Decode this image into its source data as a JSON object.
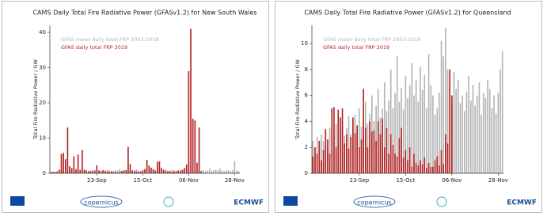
{
  "chart_data": [
    {
      "type": "bar",
      "title": "CAMS Daily Total Fire Radiative Power (GFASv1.2) for New South Wales",
      "y_label": "Total Fire Radiative Power / GW",
      "categories": [
        null,
        null,
        null,
        null,
        null,
        null,
        null,
        null,
        null,
        null,
        null,
        null,
        null,
        null,
        null,
        null,
        null,
        null,
        null,
        null,
        null,
        null,
        "23-Sep",
        null,
        null,
        null,
        null,
        null,
        null,
        null,
        null,
        null,
        null,
        null,
        null,
        null,
        null,
        null,
        null,
        null,
        null,
        null,
        null,
        null,
        "15-Oct",
        null,
        null,
        null,
        null,
        null,
        null,
        null,
        null,
        null,
        null,
        null,
        null,
        null,
        null,
        null,
        null,
        null,
        null,
        null,
        null,
        null,
        "06-Nov",
        null,
        null,
        null,
        null,
        null,
        null,
        null,
        null,
        null,
        null,
        null,
        null,
        null,
        null,
        null,
        null,
        null,
        null,
        null,
        null,
        null,
        "28-Nov",
        null,
        null
      ],
      "series": [
        {
          "name": "GFAS mean daily total FRP 2003-2018",
          "color": "#b4b4b4",
          "values": [
            0.5,
            0.6,
            0.4,
            0.7,
            0.5,
            0.8,
            0.6,
            0.9,
            0.5,
            0.7,
            0.6,
            0.8,
            0.5,
            0.9,
            0.7,
            0.6,
            1.0,
            0.8,
            0.6,
            0.7,
            0.9,
            0.7,
            1.1,
            0.8,
            0.6,
            0.9,
            0.7,
            1.0,
            0.8,
            0.6,
            0.7,
            0.9,
            0.8,
            1.2,
            0.7,
            0.9,
            0.6,
            1.0,
            0.8,
            0.7,
            0.9,
            1.1,
            0.8,
            0.6,
            1.0,
            0.9,
            0.7,
            1.2,
            0.8,
            0.9,
            0.7,
            1.0,
            0.8,
            0.6,
            0.9,
            1.1,
            0.8,
            0.7,
            1.0,
            0.9,
            0.6,
            0.8,
            1.0,
            0.7,
            0.9,
            0.8,
            1.1,
            0.7,
            0.9,
            0.6,
            0.8,
            1.0,
            0.7,
            0.9,
            0.6,
            0.8,
            1.3,
            0.7,
            0.9,
            1.0,
            0.8,
            1.4,
            0.7,
            0.6,
            0.9,
            0.8,
            0.7,
            0.9,
            3.5,
            0.8,
            0.6
          ]
        },
        {
          "name": "GFAS daily total FRP 2019",
          "color": "#b22222",
          "values": [
            0.2,
            0.3,
            0.3,
            0.4,
            1.0,
            5.5,
            5.8,
            4.0,
            13,
            2.0,
            1.5,
            4.8,
            1.2,
            5.3,
            1.0,
            6.6,
            1.0,
            0.8,
            0.6,
            0.7,
            0.5,
            0.8,
            2.3,
            0.8,
            0.6,
            0.9,
            0.7,
            0.5,
            0.4,
            0.6,
            0.3,
            0.4,
            0.2,
            0.5,
            0.6,
            0.8,
            0.9,
            7.5,
            2.6,
            0.8,
            0.6,
            0.5,
            0.4,
            0.5,
            0.8,
            1.2,
            3.8,
            2.2,
            1.6,
            1.2,
            0.8,
            3.3,
            3.4,
            1.5,
            1.0,
            0.6,
            0.5,
            0.6,
            0.4,
            0.5,
            0.6,
            0.8,
            0.7,
            1.0,
            1.5,
            2.5,
            29,
            41,
            15.5,
            15,
            3,
            13,
            0.6,
            null,
            null,
            null,
            null,
            null,
            null,
            null,
            null,
            null,
            null,
            null,
            null,
            null,
            null,
            null,
            null,
            null,
            null
          ]
        }
      ],
      "ylim": [
        0,
        42
      ],
      "yticks": [
        0,
        10,
        20,
        30,
        40
      ],
      "legend": "upper left"
    },
    {
      "type": "bar",
      "title": "CAMS Daily Total Fire Radiative Power (GFASv1.2) for Queensland",
      "y_label": "Total Fire Radiative Power / GW",
      "categories": [
        null,
        null,
        null,
        null,
        null,
        null,
        null,
        null,
        null,
        null,
        null,
        null,
        null,
        null,
        null,
        null,
        null,
        null,
        null,
        null,
        null,
        null,
        "23-Sep",
        null,
        null,
        null,
        null,
        null,
        null,
        null,
        null,
        null,
        null,
        null,
        null,
        null,
        null,
        null,
        null,
        null,
        null,
        null,
        null,
        null,
        "15-Oct",
        null,
        null,
        null,
        null,
        null,
        null,
        null,
        null,
        null,
        null,
        null,
        null,
        null,
        null,
        null,
        null,
        null,
        null,
        null,
        null,
        null,
        "06-Nov",
        null,
        null,
        null,
        null,
        null,
        null,
        null,
        null,
        null,
        null,
        null,
        null,
        null,
        null,
        null,
        null,
        null,
        null,
        null,
        null,
        null,
        "28-Nov",
        null,
        null
      ],
      "series": [
        {
          "name": "GFAS mean daily total FRP 2003-2018",
          "color": "#b4b4b4",
          "values": [
            2.5,
            1.5,
            2.8,
            2.2,
            3.0,
            2.5,
            3.2,
            2.0,
            3.5,
            2.8,
            3.0,
            3.8,
            2.6,
            3.3,
            4.0,
            2.9,
            3.5,
            4.4,
            3.0,
            3.8,
            4.5,
            3.2,
            5.0,
            3.6,
            4.2,
            5.5,
            3.8,
            4.6,
            6.0,
            4.0,
            5.2,
            6.5,
            4.3,
            5.0,
            7.0,
            4.8,
            5.6,
            8.0,
            5.0,
            6.2,
            9.0,
            5.5,
            6.6,
            4.9,
            7.5,
            5.8,
            6.8,
            8.5,
            6.0,
            7.2,
            5.5,
            8.2,
            6.4,
            7.6,
            5.0,
            9.2,
            6.8,
            6.0,
            4.5,
            5.0,
            6.2,
            10.2,
            9.0,
            11.2,
            8.0,
            6.5,
            5.5,
            7.8,
            6.5,
            7.2,
            5.4,
            6.0,
            4.8,
            6.3,
            7.5,
            5.6,
            6.8,
            5.2,
            6.0,
            7.0,
            4.5,
            6.2,
            5.8,
            7.2,
            6.5,
            5.0,
            6.0,
            4.6,
            6.2,
            8.0,
            9.4
          ]
        },
        {
          "name": "GFAS daily total FRP 2019",
          "color": "#b22222",
          "values": [
            1.3,
            2.0,
            1.5,
            2.5,
            1.0,
            1.8,
            3.4,
            2.6,
            1.5,
            5.0,
            5.1,
            2.0,
            4.9,
            4.3,
            5.0,
            2.3,
            3.0,
            1.9,
            2.8,
            4.3,
            3.1,
            3.7,
            2.0,
            2.6,
            6.5,
            3.5,
            2.0,
            4.0,
            3.2,
            3.3,
            2.5,
            4.0,
            3.0,
            4.2,
            2.0,
            3.5,
            1.5,
            3.0,
            2.2,
            1.5,
            1.3,
            2.7,
            3.5,
            1.2,
            1.8,
            1.0,
            2.0,
            0.5,
            1.5,
            0.8,
            0.6,
            1.0,
            0.7,
            1.2,
            0.4,
            0.8,
            0.5,
            0.5,
            1.0,
            1.3,
            0.6,
            1.8,
            0.7,
            3.0,
            2.3,
            8.0,
            6.0,
            null,
            null,
            null,
            null,
            null,
            null,
            null,
            null,
            null,
            null,
            null,
            null,
            null,
            null,
            null,
            null,
            null,
            null,
            null,
            null,
            null,
            null,
            null,
            null
          ]
        }
      ],
      "ylim": [
        0,
        11.4
      ],
      "yticks": [
        0,
        2,
        4,
        6,
        8,
        10
      ],
      "legend": "upper left"
    }
  ],
  "logos": [
    "copernicus",
    "ECMWF"
  ]
}
